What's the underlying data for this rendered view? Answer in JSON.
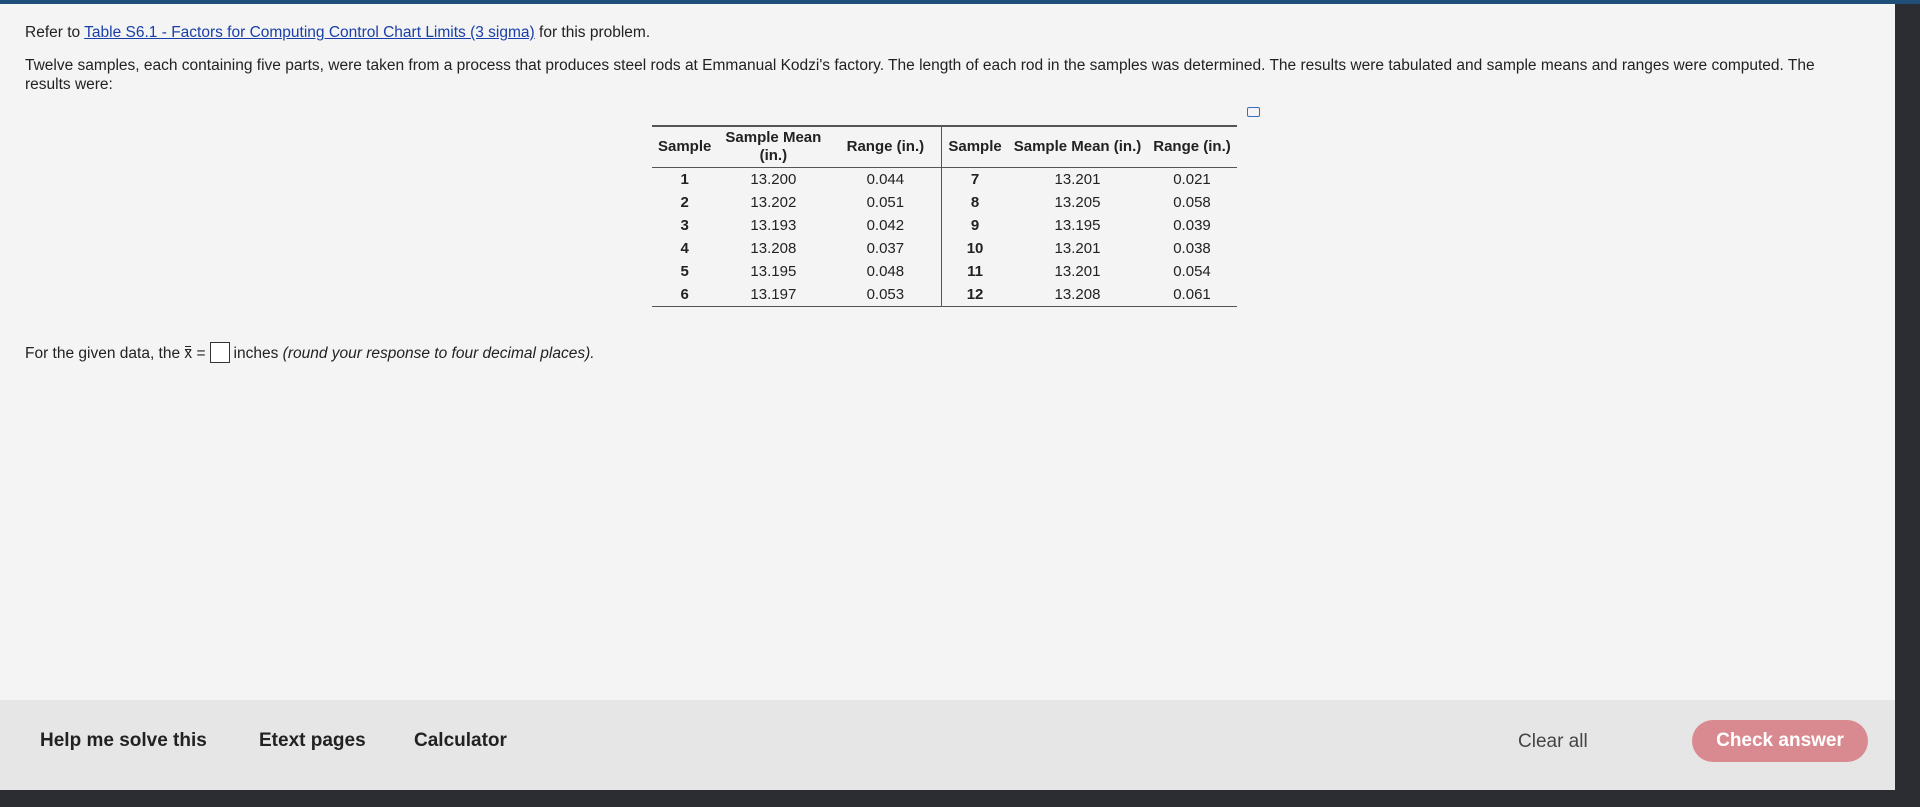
{
  "intro": {
    "prefix": "Refer to",
    "link": "Table S6.1 - Factors for Computing Control Chart Limits (3 sigma)",
    "suffix": "for this problem."
  },
  "problem": "Twelve samples, each containing five parts, were taken from a process that produces steel rods at Emmanual Kodzi's factory. The length of each rod in the samples was determined. The results were tabulated and sample means and ranges were computed. The results were:",
  "table": {
    "headers": [
      "Sample",
      "Sample Mean (in.)",
      "Range (in.)",
      "Sample",
      "Sample Mean (in.)",
      "Range (in.)"
    ],
    "rows": [
      [
        "1",
        "13.200",
        "0.044",
        "7",
        "13.201",
        "0.021"
      ],
      [
        "2",
        "13.202",
        "0.051",
        "8",
        "13.205",
        "0.058"
      ],
      [
        "3",
        "13.193",
        "0.042",
        "9",
        "13.195",
        "0.039"
      ],
      [
        "4",
        "13.208",
        "0.037",
        "10",
        "13.201",
        "0.038"
      ],
      [
        "5",
        "13.195",
        "0.048",
        "11",
        "13.201",
        "0.054"
      ],
      [
        "6",
        "13.197",
        "0.053",
        "12",
        "13.208",
        "0.061"
      ]
    ]
  },
  "question": {
    "prefix": "For the given data, the",
    "symbol": "x",
    "equals": "=",
    "suffix": "inches",
    "hint": "(round your response to four decimal places)."
  },
  "toolbar": {
    "help": "Help me solve this",
    "etext": "Etext pages",
    "calculator": "Calculator",
    "clear": "Clear all",
    "check": "Check answer"
  }
}
